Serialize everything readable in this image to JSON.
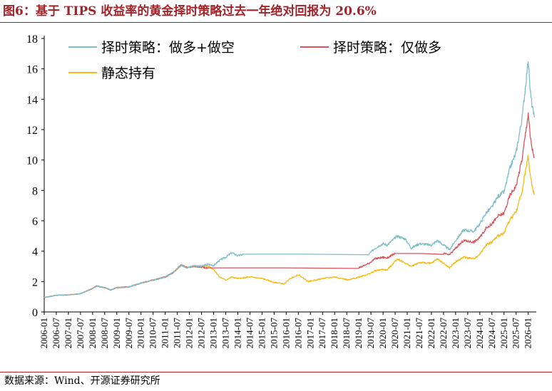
{
  "figure": {
    "title": "图6：基于 TIPS 收益率的黄金择时策略过去一年绝对回报为 20.6%",
    "source": "数据来源：Wind、开源证券研究所"
  },
  "colors": {
    "title": "#a0252b",
    "long_short": "#7fbfca",
    "long_only": "#d9555c",
    "buy_hold": "#f6bc16"
  },
  "chart_data": {
    "type": "line",
    "title": "",
    "xlabel": "",
    "ylabel": "",
    "ylim": [
      0,
      18
    ],
    "yticks": [
      "0",
      "2",
      "4",
      "6",
      "8",
      "10",
      "12",
      "14",
      "16",
      "18"
    ],
    "xlim": [
      "2006-01",
      "2026-05"
    ],
    "xticks": [
      "2006-01",
      "2006-07",
      "2007-01",
      "2007-07",
      "2008-01",
      "2008-07",
      "2009-01",
      "2009-07",
      "2010-01",
      "2010-07",
      "2011-01",
      "2011-07",
      "2012-01",
      "2012-07",
      "2013-01",
      "2013-07",
      "2014-01",
      "2014-07",
      "2015-01",
      "2015-07",
      "2016-01",
      "2016-07",
      "2017-01",
      "2017-07",
      "2018-01",
      "2018-07",
      "2019-01",
      "2019-07",
      "2020-01",
      "2020-07",
      "2021-01",
      "2021-07",
      "2022-01",
      "2022-07",
      "2023-01",
      "2023-07",
      "2024-01",
      "2024-07",
      "2025-01",
      "2025-07",
      "2026-01"
    ],
    "legend_position": "top",
    "grid": false,
    "series": [
      {
        "name": "择时策略：做多+做空",
        "color": "#7fbfca",
        "points": [
          [
            "2006-01",
            0.95
          ],
          [
            "2006-07",
            1.1
          ],
          [
            "2007-01",
            1.12
          ],
          [
            "2007-07",
            1.2
          ],
          [
            "2008-01",
            1.55
          ],
          [
            "2008-03",
            1.7
          ],
          [
            "2008-07",
            1.6
          ],
          [
            "2008-10",
            1.45
          ],
          [
            "2009-01",
            1.6
          ],
          [
            "2009-07",
            1.65
          ],
          [
            "2010-01",
            1.9
          ],
          [
            "2010-07",
            2.1
          ],
          [
            "2011-01",
            2.3
          ],
          [
            "2011-05",
            2.6
          ],
          [
            "2011-09",
            3.1
          ],
          [
            "2011-12",
            2.9
          ],
          [
            "2012-03",
            3.05
          ],
          [
            "2012-07",
            3.0
          ],
          [
            "2012-10",
            3.15
          ],
          [
            "2013-01",
            3.05
          ],
          [
            "2013-04",
            3.4
          ],
          [
            "2013-07",
            3.6
          ],
          [
            "2013-10",
            3.9
          ],
          [
            "2014-01",
            3.7
          ],
          [
            "2014-04",
            3.8
          ],
          [
            "2019-06",
            3.8
          ],
          [
            "2019-09",
            4.2
          ],
          [
            "2020-01",
            4.5
          ],
          [
            "2020-03",
            4.4
          ],
          [
            "2020-08",
            5.0
          ],
          [
            "2020-12",
            4.8
          ],
          [
            "2021-03",
            4.2
          ],
          [
            "2021-07",
            4.5
          ],
          [
            "2022-01",
            4.4
          ],
          [
            "2022-04",
            4.7
          ],
          [
            "2022-10",
            4.1
          ],
          [
            "2023-01",
            4.7
          ],
          [
            "2023-05",
            5.4
          ],
          [
            "2023-10",
            5.3
          ],
          [
            "2024-01",
            5.8
          ],
          [
            "2024-04",
            6.5
          ],
          [
            "2024-07",
            6.9
          ],
          [
            "2024-10",
            7.6
          ],
          [
            "2025-01",
            7.9
          ],
          [
            "2025-04",
            9.5
          ],
          [
            "2025-07",
            10.5
          ],
          [
            "2025-10",
            12.8
          ],
          [
            "2026-01",
            16.6
          ],
          [
            "2026-02",
            14.5
          ],
          [
            "2026-03",
            13.5
          ],
          [
            "2026-04",
            12.8
          ]
        ]
      },
      {
        "name": "择时策略：仅做多",
        "color": "#d9555c",
        "points": [
          [
            "2006-01",
            0.95
          ],
          [
            "2006-07",
            1.1
          ],
          [
            "2007-01",
            1.12
          ],
          [
            "2007-07",
            1.2
          ],
          [
            "2008-01",
            1.55
          ],
          [
            "2008-03",
            1.7
          ],
          [
            "2008-07",
            1.6
          ],
          [
            "2008-10",
            1.45
          ],
          [
            "2009-01",
            1.6
          ],
          [
            "2009-07",
            1.65
          ],
          [
            "2010-01",
            1.9
          ],
          [
            "2010-07",
            2.1
          ],
          [
            "2011-01",
            2.3
          ],
          [
            "2011-05",
            2.6
          ],
          [
            "2011-09",
            3.1
          ],
          [
            "2011-12",
            2.9
          ],
          [
            "2012-03",
            3.0
          ],
          [
            "2012-07",
            2.95
          ],
          [
            "2012-10",
            2.9
          ],
          [
            "2019-01",
            2.9
          ],
          [
            "2019-06",
            3.2
          ],
          [
            "2019-09",
            3.5
          ],
          [
            "2020-01",
            3.6
          ],
          [
            "2020-03",
            3.55
          ],
          [
            "2020-07",
            3.85
          ],
          [
            "2022-07",
            3.85
          ],
          [
            "2022-10",
            3.75
          ],
          [
            "2023-01",
            4.2
          ],
          [
            "2023-05",
            4.7
          ],
          [
            "2023-10",
            4.6
          ],
          [
            "2024-01",
            4.9
          ],
          [
            "2024-04",
            5.5
          ],
          [
            "2024-07",
            5.8
          ],
          [
            "2024-10",
            6.3
          ],
          [
            "2025-01",
            6.5
          ],
          [
            "2025-04",
            7.7
          ],
          [
            "2025-07",
            8.3
          ],
          [
            "2025-10",
            10.1
          ],
          [
            "2026-01",
            13.1
          ],
          [
            "2026-02",
            11.5
          ],
          [
            "2026-03",
            10.7
          ],
          [
            "2026-04",
            10.2
          ]
        ]
      },
      {
        "name": "静态持有",
        "color": "#f6bc16",
        "points": [
          [
            "2006-01",
            0.95
          ],
          [
            "2006-07",
            1.1
          ],
          [
            "2007-01",
            1.12
          ],
          [
            "2007-07",
            1.2
          ],
          [
            "2008-01",
            1.55
          ],
          [
            "2008-03",
            1.7
          ],
          [
            "2008-07",
            1.6
          ],
          [
            "2008-10",
            1.45
          ],
          [
            "2009-01",
            1.6
          ],
          [
            "2009-07",
            1.65
          ],
          [
            "2010-01",
            1.9
          ],
          [
            "2010-07",
            2.1
          ],
          [
            "2011-01",
            2.3
          ],
          [
            "2011-05",
            2.6
          ],
          [
            "2011-09",
            3.1
          ],
          [
            "2011-12",
            2.9
          ],
          [
            "2012-03",
            3.0
          ],
          [
            "2012-07",
            2.95
          ],
          [
            "2012-10",
            3.05
          ],
          [
            "2013-01",
            2.8
          ],
          [
            "2013-04",
            2.3
          ],
          [
            "2013-07",
            2.1
          ],
          [
            "2013-10",
            2.3
          ],
          [
            "2014-01",
            2.2
          ],
          [
            "2014-07",
            2.3
          ],
          [
            "2015-01",
            2.2
          ],
          [
            "2015-07",
            1.95
          ],
          [
            "2015-12",
            1.85
          ],
          [
            "2016-03",
            2.2
          ],
          [
            "2016-07",
            2.45
          ],
          [
            "2016-12",
            2.0
          ],
          [
            "2017-07",
            2.2
          ],
          [
            "2018-01",
            2.3
          ],
          [
            "2018-08",
            2.1
          ],
          [
            "2019-01",
            2.3
          ],
          [
            "2019-06",
            2.5
          ],
          [
            "2019-09",
            2.7
          ],
          [
            "2020-01",
            2.8
          ],
          [
            "2020-03",
            2.75
          ],
          [
            "2020-08",
            3.5
          ],
          [
            "2021-03",
            3.0
          ],
          [
            "2021-07",
            3.25
          ],
          [
            "2022-01",
            3.2
          ],
          [
            "2022-04",
            3.5
          ],
          [
            "2022-10",
            2.9
          ],
          [
            "2023-01",
            3.3
          ],
          [
            "2023-05",
            3.6
          ],
          [
            "2023-10",
            3.5
          ],
          [
            "2024-01",
            3.8
          ],
          [
            "2024-04",
            4.4
          ],
          [
            "2024-07",
            4.6
          ],
          [
            "2024-10",
            5.0
          ],
          [
            "2025-01",
            5.2
          ],
          [
            "2025-04",
            6.1
          ],
          [
            "2025-07",
            6.6
          ],
          [
            "2025-10",
            8.0
          ],
          [
            "2026-01",
            10.3
          ],
          [
            "2026-02",
            9.0
          ],
          [
            "2026-03",
            8.2
          ],
          [
            "2026-04",
            7.7
          ]
        ]
      }
    ]
  }
}
